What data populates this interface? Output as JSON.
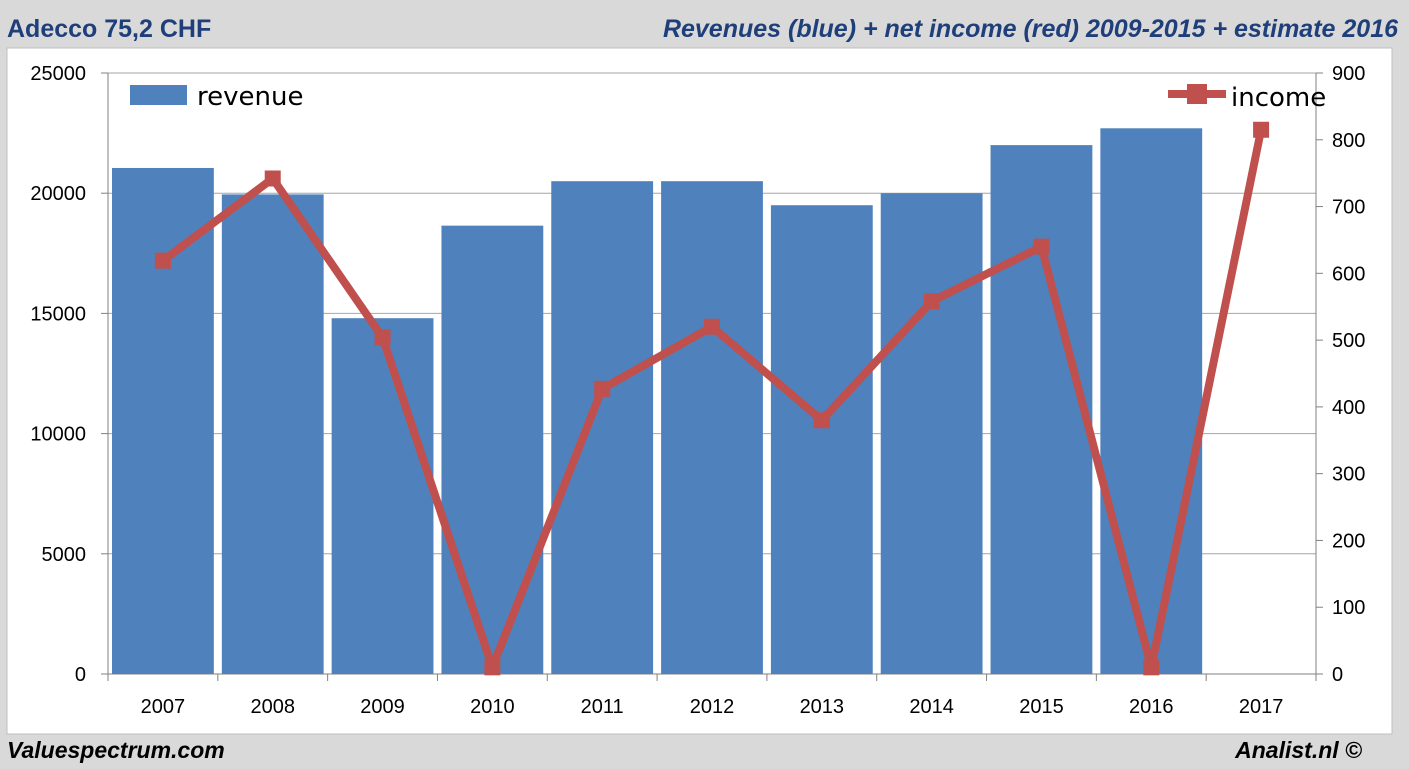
{
  "header": {
    "left_title": "Adecco 75,2 CHF",
    "right_title": "Revenues (blue) + net income (red) 2009-2015 + estimate 2016"
  },
  "footer": {
    "left": "Valuespectrum.com",
    "right": "Analist.nl ©"
  },
  "colors": {
    "background": "#d9d9d9",
    "plot_bg": "#ffffff",
    "revenue": "#4f81bd",
    "income": "#c0504d",
    "title": "#1f3f7a",
    "grid": "#a6a6a6"
  },
  "chart_data": {
    "type": "bar",
    "categories": [
      "2007",
      "2008",
      "2009",
      "2010",
      "2011",
      "2012",
      "2013",
      "2014",
      "2015",
      "2016",
      "2017"
    ],
    "series": [
      {
        "name": "revenue",
        "type": "bar",
        "axis": "left",
        "values": [
          21050,
          19950,
          14800,
          18650,
          20500,
          20500,
          19500,
          20000,
          22000,
          22700,
          null
        ]
      },
      {
        "name": "income",
        "type": "line",
        "axis": "right",
        "values": [
          619,
          742,
          504,
          10,
          427,
          520,
          380,
          558,
          640,
          10,
          815
        ]
      }
    ],
    "y_left": {
      "min": 0,
      "max": 25000,
      "ticks": [
        "0",
        "5000",
        "10000",
        "15000",
        "20000",
        "25000"
      ]
    },
    "y_right": {
      "min": 0,
      "max": 900,
      "ticks": [
        "0",
        "100",
        "200",
        "300",
        "400",
        "500",
        "600",
        "700",
        "800",
        "900"
      ]
    },
    "grid": true,
    "legend": [
      {
        "label": "revenue",
        "position": "top-left"
      },
      {
        "label": "income",
        "position": "top-right"
      }
    ]
  }
}
